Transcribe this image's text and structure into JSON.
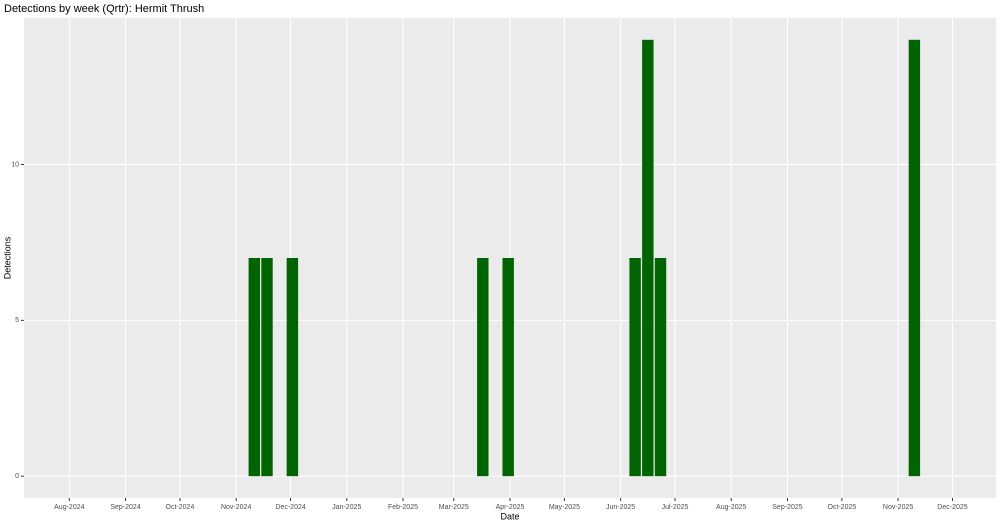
{
  "chart_data": {
    "type": "bar",
    "title": "Detections by week (Qrtr): Hermit Thrush",
    "x_label": "Date",
    "y_label": "Detections",
    "x": [
      "2024-11-11",
      "2024-11-18",
      "2024-12-02",
      "2025-03-17",
      "2025-03-31",
      "2025-06-09",
      "2025-06-16",
      "2025-06-23",
      "2025-11-10"
    ],
    "values": [
      7,
      7,
      7,
      7,
      7,
      7,
      14,
      7,
      14
    ],
    "color": "#006400",
    "xlim": [
      "2024-07-07",
      "2025-12-25"
    ],
    "xticks": [
      {
        "value": "2024-08-01",
        "label": "Aug-2024"
      },
      {
        "value": "2024-09-01",
        "label": "Sep-2024"
      },
      {
        "value": "2024-10-01",
        "label": "Oct-2024"
      },
      {
        "value": "2024-11-01",
        "label": "Nov-2024"
      },
      {
        "value": "2024-12-01",
        "label": "Dec-2024"
      },
      {
        "value": "2025-01-01",
        "label": "Jan-2025"
      },
      {
        "value": "2025-02-01",
        "label": "Feb-2025"
      },
      {
        "value": "2025-03-01",
        "label": "Mar-2025"
      },
      {
        "value": "2025-04-01",
        "label": "Apr-2025"
      },
      {
        "value": "2025-05-01",
        "label": "May-2025"
      },
      {
        "value": "2025-06-01",
        "label": "Jun-2025"
      },
      {
        "value": "2025-07-01",
        "label": "Jul-2025"
      },
      {
        "value": "2025-08-01",
        "label": "Aug-2025"
      },
      {
        "value": "2025-09-01",
        "label": "Sep-2025"
      },
      {
        "value": "2025-10-01",
        "label": "Oct-2025"
      },
      {
        "value": "2025-11-01",
        "label": "Nov-2025"
      },
      {
        "value": "2025-12-01",
        "label": "Dec-2025"
      }
    ],
    "ylim": [
      -0.7,
      14.7
    ],
    "yticks": [
      0,
      5,
      10
    ],
    "grid": true
  }
}
